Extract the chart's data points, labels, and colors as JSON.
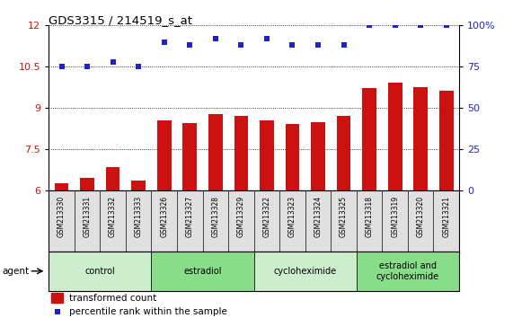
{
  "title": "GDS3315 / 214519_s_at",
  "samples": [
    "GSM213330",
    "GSM213331",
    "GSM213332",
    "GSM213333",
    "GSM213326",
    "GSM213327",
    "GSM213328",
    "GSM213329",
    "GSM213322",
    "GSM213323",
    "GSM213324",
    "GSM213325",
    "GSM213318",
    "GSM213319",
    "GSM213320",
    "GSM213321"
  ],
  "bar_values": [
    6.28,
    6.48,
    6.85,
    6.38,
    8.55,
    8.45,
    8.78,
    8.72,
    8.55,
    8.44,
    8.5,
    8.72,
    9.72,
    9.92,
    9.75,
    9.62
  ],
  "dot_values": [
    75,
    75,
    78,
    75,
    90,
    88,
    92,
    88,
    92,
    88,
    88,
    88,
    100,
    100,
    100,
    100
  ],
  "bar_color": "#cc1111",
  "dot_color": "#2222cc",
  "ylim_left": [
    6,
    12
  ],
  "ylim_right": [
    0,
    100
  ],
  "yticks_left": [
    6,
    7.5,
    9,
    10.5,
    12
  ],
  "yticks_right": [
    0,
    25,
    50,
    75,
    100
  ],
  "groups": [
    {
      "label": "control",
      "start": 0,
      "end": 4,
      "color": "#cceecc"
    },
    {
      "label": "estradiol",
      "start": 4,
      "end": 8,
      "color": "#88dd88"
    },
    {
      "label": "cycloheximide",
      "start": 8,
      "end": 12,
      "color": "#cceecc"
    },
    {
      "label": "estradiol and\ncycloheximide",
      "start": 12,
      "end": 16,
      "color": "#88dd88"
    }
  ],
  "legend_bar_label": "transformed count",
  "legend_dot_label": "percentile rank within the sample",
  "agent_label": "agent",
  "cell_bg": "#e0e0e0",
  "plot_bg": "#ffffff"
}
